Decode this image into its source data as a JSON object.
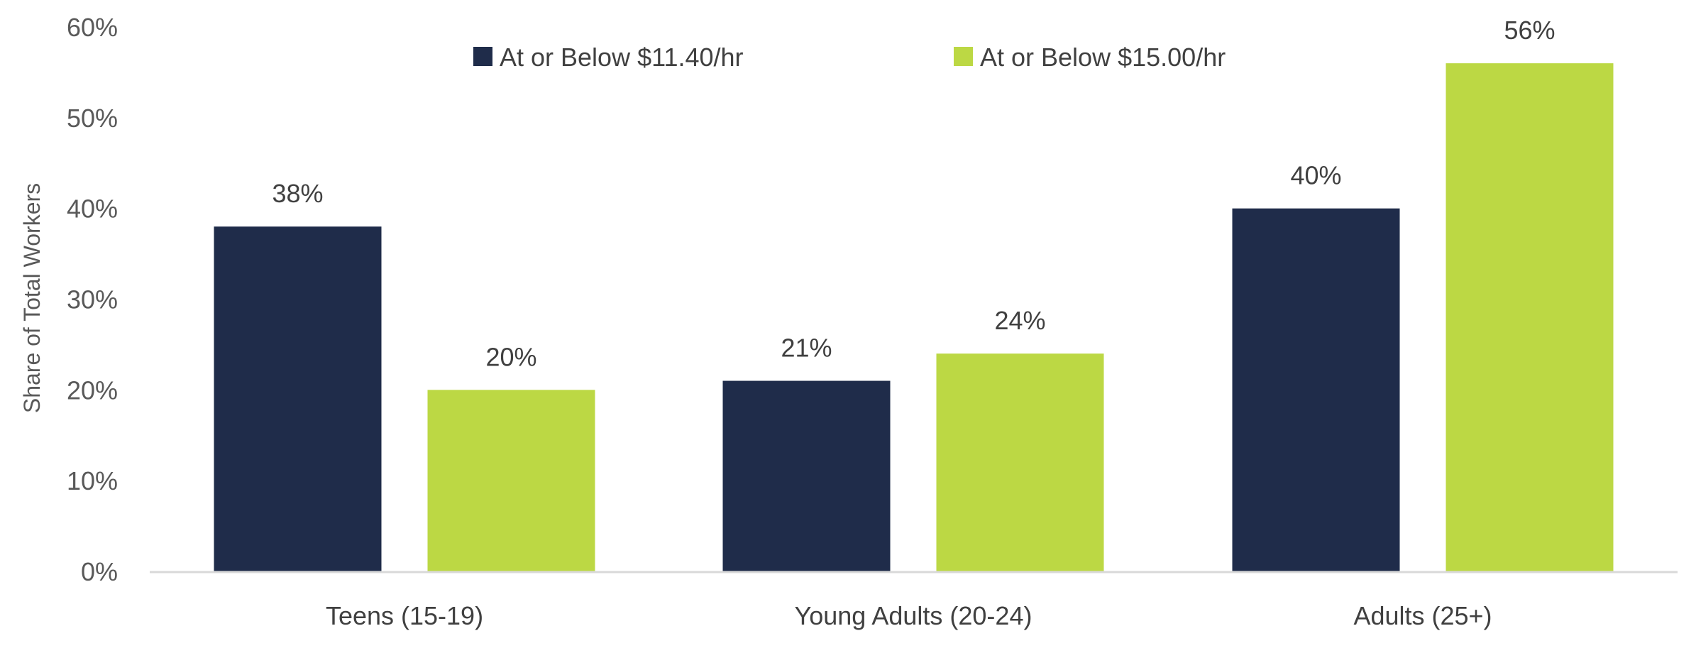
{
  "chart_data": {
    "type": "bar",
    "title": "",
    "xlabel": "",
    "ylabel": "Share of Total Workers",
    "ylim": [
      0,
      60
    ],
    "yticks": [
      0,
      10,
      20,
      30,
      40,
      50,
      60
    ],
    "ytick_labels": [
      "0%",
      "10%",
      "20%",
      "30%",
      "40%",
      "50%",
      "60%"
    ],
    "grid": false,
    "legend_position": "top-center",
    "categories": [
      "Teens (15-19)",
      "Young Adults (20-24)",
      "Adults (25+)"
    ],
    "series": [
      {
        "name": "At or Below $11.40/hr",
        "color": "#1f2c4a",
        "values": [
          38,
          21,
          40
        ],
        "labels": [
          "38%",
          "21%",
          "40%"
        ]
      },
      {
        "name": "At or Below $15.00/hr",
        "color": "#bcd844",
        "values": [
          20,
          24,
          56
        ],
        "labels": [
          "20%",
          "24%",
          "56%"
        ]
      }
    ],
    "axis_color": "#d9d9d9"
  }
}
